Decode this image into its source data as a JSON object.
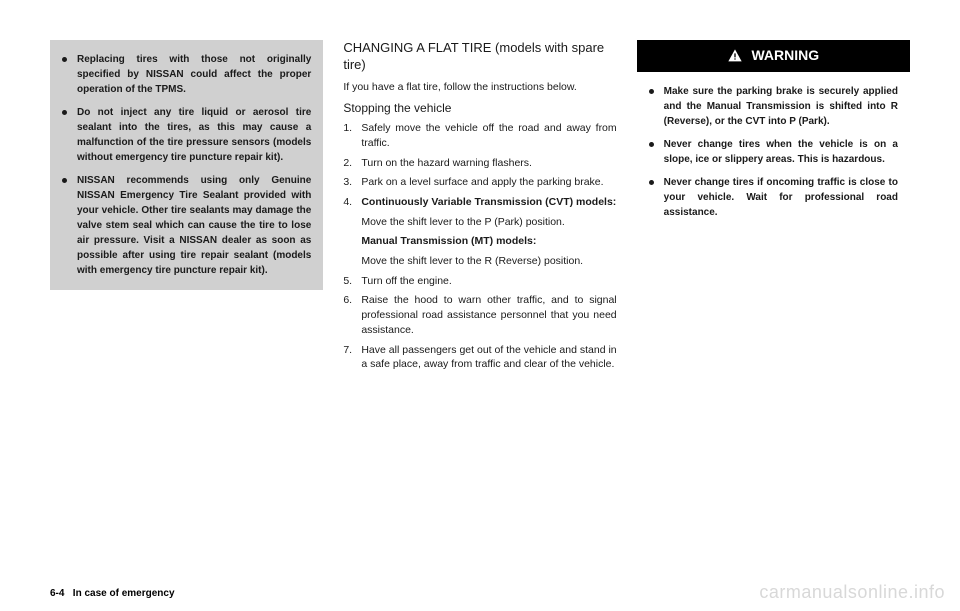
{
  "col1": {
    "items": [
      "Replacing tires with those not originally specified by NISSAN could affect the proper operation of the TPMS.",
      "Do not inject any tire liquid or aerosol tire sealant into the tires, as this may cause a malfunction of the tire pressure sensors (models without emergency tire puncture repair kit).",
      "NISSAN recommends using only Genuine NISSAN Emergency Tire Sealant provided with your vehicle. Other tire sealants may damage the valve stem seal which can cause the tire to lose air pressure. Visit a NISSAN dealer as soon as possible after using tire repair sealant (models with emergency tire puncture repair kit)."
    ]
  },
  "col2": {
    "heading": "CHANGING A FLAT TIRE (models with spare tire)",
    "intro": "If you have a flat tire, follow the instructions below.",
    "subheading": "Stopping the vehicle",
    "steps": [
      {
        "num": "1.",
        "text": "Safely move the vehicle off the road and away from traffic."
      },
      {
        "num": "2.",
        "text": "Turn on the hazard warning flashers."
      },
      {
        "num": "3.",
        "text": "Park on a level surface and apply the parking brake."
      },
      {
        "num": "4.",
        "text": "Continuously Variable Transmission (CVT) models:",
        "bold": true
      },
      {
        "num": "",
        "text": "Move the shift lever to the P (Park) position.",
        "indent": true
      },
      {
        "num": "",
        "text": "Manual Transmission (MT) models:",
        "indent": true,
        "bold": true
      },
      {
        "num": "",
        "text": "Move the shift lever to the R (Reverse) position.",
        "indent": true
      },
      {
        "num": "5.",
        "text": "Turn off the engine."
      },
      {
        "num": "6.",
        "text": "Raise the hood to warn other traffic, and to signal professional road assistance personnel that you need assistance."
      },
      {
        "num": "7.",
        "text": "Have all passengers get out of the vehicle and stand in a safe place, away from traffic and clear of the vehicle."
      }
    ]
  },
  "col3": {
    "warningLabel": "WARNING",
    "items": [
      "Make sure the parking brake is securely applied and the Manual Transmission is shifted into R (Reverse), or the CVT into P (Park).",
      "Never change tires when the vehicle is on a slope, ice or slippery areas. This is hazardous.",
      "Never change tires if oncoming traffic is close to your vehicle. Wait for professional road assistance."
    ]
  },
  "footer": {
    "pageNum": "6-4",
    "section": "In case of emergency"
  },
  "watermark": "carmanualsonline.info"
}
